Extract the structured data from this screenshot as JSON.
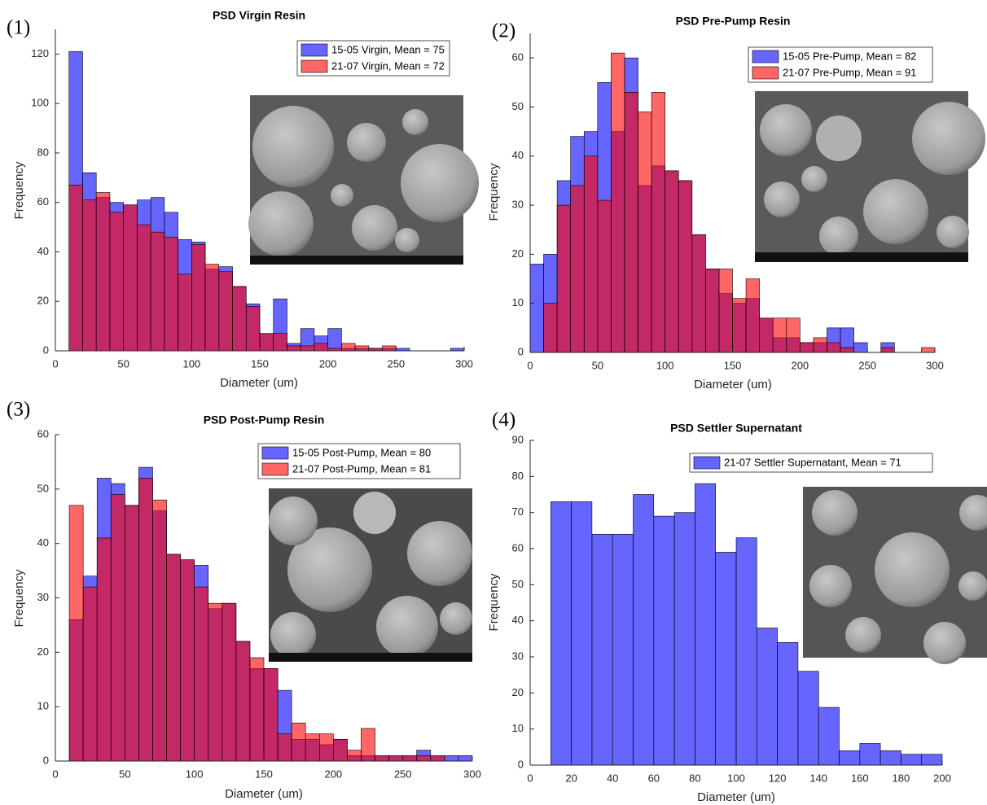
{
  "chart_data": [
    {
      "type": "histogram",
      "panel_label": "(1)",
      "title": "PSD Virgin Resin",
      "x_label": "Diameter (um)",
      "y_label": "Frequency",
      "bins": [
        10,
        20,
        30,
        40,
        50,
        60,
        70,
        80,
        90,
        100,
        110,
        120,
        130,
        140,
        150,
        160,
        170,
        180,
        190,
        200,
        210,
        220,
        230,
        240,
        250,
        260,
        270,
        280,
        290,
        300
      ],
      "series": [
        {
          "name": "15-05 Virgin, Mean = 75",
          "color": "#0000ff",
          "values": [
            121,
            72,
            62,
            60,
            59,
            61,
            62,
            56,
            45,
            44,
            33,
            34,
            26,
            19,
            7,
            21,
            3,
            9,
            6,
            9,
            1,
            1,
            1,
            1,
            1,
            0,
            0,
            0,
            1
          ]
        },
        {
          "name": "21-07 Virgin, Mean = 72",
          "color": "#ff0000",
          "values": [
            67,
            61,
            64,
            56,
            59,
            51,
            48,
            46,
            31,
            43,
            35,
            32,
            26,
            18,
            7,
            7,
            2,
            2,
            3,
            1,
            3,
            2,
            1,
            2,
            0,
            0,
            0,
            0,
            0
          ]
        }
      ],
      "face_alpha": 0.6,
      "xlim": [
        0,
        300
      ],
      "xticks": [
        0,
        50,
        100,
        150,
        200,
        250,
        300
      ],
      "ylim": [
        0,
        130
      ],
      "yticks": [
        0,
        20,
        40,
        60,
        80,
        100,
        120
      ]
    },
    {
      "type": "histogram",
      "panel_label": "(2)",
      "title": "PSD Pre-Pump Resin",
      "x_label": "Diameter (um)",
      "y_label": "Frequency",
      "bins": [
        0,
        10,
        20,
        30,
        40,
        50,
        60,
        70,
        80,
        90,
        100,
        110,
        120,
        130,
        140,
        150,
        160,
        170,
        180,
        190,
        200,
        210,
        220,
        230,
        240,
        250,
        260,
        270,
        280,
        290,
        300
      ],
      "series": [
        {
          "name": "15-05 Pre-Pump, Mean = 82",
          "color": "#0000ff",
          "values": [
            18,
            20,
            35,
            44,
            45,
            55,
            45,
            60,
            34,
            38,
            37,
            35,
            24,
            17,
            12,
            10,
            11,
            7,
            3,
            3,
            2,
            2,
            5,
            5,
            2,
            0,
            2,
            0,
            0,
            0
          ]
        },
        {
          "name": "21-07 Pre-Pump, Mean = 91",
          "color": "#ff0000",
          "values": [
            0,
            10,
            30,
            34,
            40,
            31,
            61,
            53,
            49,
            53,
            37,
            35,
            24,
            17,
            17,
            11,
            15,
            7,
            7,
            7,
            2,
            3,
            2,
            1,
            0,
            0,
            1,
            0,
            0,
            1
          ]
        }
      ],
      "face_alpha": 0.6,
      "xlim": [
        0,
        300
      ],
      "xticks": [
        0,
        50,
        100,
        150,
        200,
        250,
        300
      ],
      "ylim": [
        0,
        65
      ],
      "yticks": [
        0,
        10,
        20,
        30,
        40,
        50,
        60
      ]
    },
    {
      "type": "histogram",
      "panel_label": "(3)",
      "title": "PSD Post-Pump Resin",
      "x_label": "Diameter (um)",
      "y_label": "Frequency",
      "bins": [
        10,
        20,
        30,
        40,
        50,
        60,
        70,
        80,
        90,
        100,
        110,
        120,
        130,
        140,
        150,
        160,
        170,
        180,
        190,
        200,
        210,
        220,
        230,
        240,
        250,
        260,
        270,
        280,
        290,
        300
      ],
      "series": [
        {
          "name": "15-05 Post-Pump, Mean = 80",
          "color": "#0000ff",
          "values": [
            26,
            34,
            52,
            51,
            47,
            54,
            46,
            38,
            37,
            36,
            28,
            29,
            22,
            17,
            17,
            13,
            4,
            4,
            3,
            4,
            1,
            1,
            1,
            1,
            1,
            2,
            1,
            1,
            1
          ]
        },
        {
          "name": "21-07 Post-Pump, Mean = 81",
          "color": "#ff0000",
          "values": [
            47,
            32,
            41,
            49,
            47,
            52,
            48,
            38,
            37,
            32,
            29,
            29,
            22,
            19,
            17,
            5,
            7,
            5,
            5,
            4,
            2,
            6,
            1,
            1,
            1,
            1,
            1,
            0,
            0
          ]
        }
      ],
      "face_alpha": 0.6,
      "xlim": [
        0,
        300
      ],
      "xticks": [
        0,
        50,
        100,
        150,
        200,
        250,
        300
      ],
      "ylim": [
        0,
        60
      ],
      "yticks": [
        0,
        10,
        20,
        30,
        40,
        50,
        60
      ]
    },
    {
      "type": "histogram",
      "panel_label": "(4)",
      "title": "PSD Settler Supernatant",
      "x_label": "Diameter (um)",
      "y_label": "Frequency",
      "bins": [
        10,
        20,
        30,
        40,
        50,
        60,
        70,
        80,
        90,
        100,
        110,
        120,
        130,
        140,
        150,
        160,
        170,
        180,
        190,
        200
      ],
      "series": [
        {
          "name": "21-07 Settler Supernatant, Mean = 71",
          "color": "#0000ff",
          "values": [
            73,
            73,
            64,
            64,
            75,
            69,
            70,
            78,
            59,
            63,
            38,
            34,
            26,
            16,
            4,
            6,
            4,
            3,
            3
          ]
        }
      ],
      "face_alpha": 0.6,
      "xlim": [
        0,
        200
      ],
      "xticks": [
        0,
        20,
        40,
        60,
        80,
        100,
        120,
        140,
        160,
        180,
        200
      ],
      "ylim": [
        0,
        90
      ],
      "yticks": [
        0,
        10,
        20,
        30,
        40,
        50,
        60,
        70,
        80,
        90
      ]
    }
  ]
}
